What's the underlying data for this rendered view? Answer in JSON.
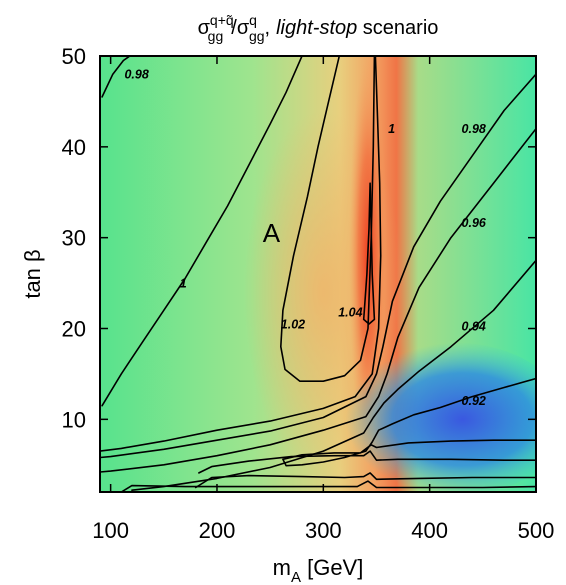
{
  "chart_data": {
    "type": "heatmap",
    "title": "σgg^{q+q̃}/σgg^q, light-stop scenario",
    "title_parts": {
      "sigma": "σ",
      "num_sub": "gg",
      "num_sup": "q+q̃",
      "slash": "/",
      "den_sub": "gg",
      "den_sup": "q",
      "comma": ",",
      "italic": "light-stop",
      "rest": " scenario"
    },
    "xlabel": "m",
    "xlabel_sub": "A",
    "xlabel_unit": " [GeV]",
    "ylabel": "tan β",
    "xlim": [
      90,
      500
    ],
    "ylim": [
      2,
      50
    ],
    "xticks": [
      100,
      200,
      300,
      400,
      500
    ],
    "yticks": [
      10,
      20,
      30,
      40,
      50
    ],
    "grid": false,
    "colormap": "rainbow (blue low → green → yellow → red high)",
    "region_label": {
      "text": "A",
      "x": 243,
      "y": 29.5
    },
    "contours": [
      {
        "level": "0.98",
        "label": {
          "text": "0.98",
          "x": 113,
          "y": 47.5
        },
        "points": [
          [
            92,
            45.5
          ],
          [
            102,
            48
          ],
          [
            112,
            49.5
          ],
          [
            118,
            50
          ]
        ]
      },
      {
        "level": "1",
        "label": {
          "text": "1",
          "x": 165,
          "y": 24.5
        },
        "points": [
          [
            92,
            11.5
          ],
          [
            110,
            15
          ],
          [
            130,
            18.5
          ],
          [
            150,
            22
          ],
          [
            170,
            25.5
          ],
          [
            190,
            29.5
          ],
          [
            210,
            33.5
          ],
          [
            230,
            38
          ],
          [
            250,
            42.5
          ],
          [
            265,
            46
          ],
          [
            280,
            50
          ]
        ]
      },
      {
        "level": "1.02",
        "label": {
          "text": "1.02",
          "x": 260,
          "y": 20
        },
        "points": [
          [
            315,
            50
          ],
          [
            305,
            45
          ],
          [
            295,
            40
          ],
          [
            285,
            34.5
          ],
          [
            272,
            28
          ],
          [
            262,
            22
          ],
          [
            260,
            18
          ],
          [
            264,
            15.5
          ],
          [
            278,
            14.2
          ],
          [
            300,
            14.2
          ],
          [
            320,
            14.8
          ],
          [
            335,
            16.5
          ],
          [
            342,
            20
          ],
          [
            345,
            30
          ],
          [
            347,
            40
          ],
          [
            348,
            50
          ]
        ]
      },
      {
        "level": "1.04",
        "label": {
          "text": "1.04",
          "x": 314,
          "y": 21.3
        },
        "points": [
          [
            338,
            21
          ],
          [
            341,
            26
          ],
          [
            343,
            31
          ],
          [
            344,
            36
          ],
          [
            345,
            31
          ],
          [
            346,
            26
          ],
          [
            348,
            21
          ],
          [
            343,
            20.5
          ],
          [
            338,
            21
          ]
        ]
      },
      {
        "level": "1",
        "label": {
          "text": "1",
          "x": 361,
          "y": 41.5
        },
        "points": [
          [
            349,
            50
          ],
          [
            351,
            43
          ],
          [
            353,
            36
          ],
          [
            354,
            28
          ],
          [
            352,
            20
          ],
          [
            346,
            15
          ],
          [
            330,
            12.5
          ],
          [
            300,
            11.2
          ],
          [
            250,
            9.8
          ],
          [
            200,
            8.8
          ],
          [
            150,
            7.6
          ],
          [
            110,
            6.8
          ],
          [
            90,
            6.5
          ]
        ]
      },
      {
        "level": "0.98",
        "label": {
          "text": "0.98",
          "x": 430,
          "y": 41.5
        },
        "points": [
          [
            500,
            48
          ],
          [
            470,
            44
          ],
          [
            440,
            39
          ],
          [
            410,
            34
          ],
          [
            385,
            29
          ],
          [
            365,
            23
          ],
          [
            356,
            18
          ],
          [
            350,
            15
          ],
          [
            340,
            12.5
          ],
          [
            300,
            10.2
          ],
          [
            250,
            8.7
          ],
          [
            200,
            7.7
          ],
          [
            150,
            6.7
          ],
          [
            100,
            5.9
          ],
          [
            90,
            5.8
          ]
        ]
      },
      {
        "level": "0.96",
        "label": {
          "text": "0.96",
          "x": 430,
          "y": 31.2
        },
        "points": [
          [
            500,
            42
          ],
          [
            460,
            36
          ],
          [
            420,
            30
          ],
          [
            390,
            24.5
          ],
          [
            370,
            19
          ],
          [
            360,
            15
          ],
          [
            352,
            12.5
          ],
          [
            340,
            10.3
          ],
          [
            300,
            8.8
          ],
          [
            250,
            7.2
          ],
          [
            200,
            6
          ],
          [
            150,
            5
          ],
          [
            100,
            4.3
          ],
          [
            90,
            4.2
          ]
        ]
      },
      {
        "level": "0.94",
        "label": {
          "text": "0.94",
          "x": 430,
          "y": 19.8
        },
        "points": [
          [
            500,
            27.5
          ],
          [
            460,
            22
          ],
          [
            420,
            18
          ],
          [
            390,
            15.3
          ],
          [
            370,
            13.3
          ],
          [
            357,
            11.8
          ],
          [
            347,
            10.2
          ],
          [
            338,
            8.5
          ],
          [
            300,
            6.5
          ],
          [
            250,
            4.7
          ],
          [
            200,
            3.5
          ],
          [
            150,
            2.6
          ],
          [
            120,
            2.2
          ]
        ]
      },
      {
        "level": "0.92",
        "label": {
          "text": "0.92",
          "x": 430,
          "y": 11.6
        },
        "points": [
          [
            500,
            14.5
          ],
          [
            470,
            13.5
          ],
          [
            440,
            12.5
          ],
          [
            410,
            11.3
          ],
          [
            385,
            10.5
          ],
          [
            365,
            9.5
          ],
          [
            352,
            8.8
          ],
          [
            346,
            7.5
          ],
          [
            340,
            6.5
          ],
          [
            320,
            5.8
          ],
          [
            300,
            5.3
          ],
          [
            280,
            5.0
          ],
          [
            265,
            4.9
          ],
          [
            262,
            5.6
          ],
          [
            280,
            6.1
          ],
          [
            310,
            6.3
          ],
          [
            335,
            6.3
          ],
          [
            345,
            7.2
          ],
          [
            350,
            6.9
          ],
          [
            380,
            7.4
          ],
          [
            420,
            7.6
          ],
          [
            460,
            7.7
          ],
          [
            500,
            7.7
          ]
        ]
      },
      {
        "level": "0.91",
        "label": null,
        "points": [
          [
            183,
            4.1
          ],
          [
            195,
            4.8
          ],
          [
            230,
            5.4
          ],
          [
            270,
            5.9
          ],
          [
            310,
            6.0
          ],
          [
            338,
            6.0
          ],
          [
            344,
            6.5
          ],
          [
            350,
            5.5
          ],
          [
            370,
            5.6
          ],
          [
            420,
            5.6
          ],
          [
            470,
            5.5
          ],
          [
            500,
            5.5
          ]
        ]
      },
      {
        "level": "0.90",
        "label": null,
        "points": [
          [
            180,
            2.5
          ],
          [
            195,
            3.6
          ],
          [
            230,
            3.8
          ],
          [
            280,
            3.7
          ],
          [
            320,
            3.6
          ],
          [
            338,
            3.7
          ],
          [
            344,
            4.1
          ],
          [
            350,
            3.4
          ],
          [
            390,
            3.5
          ],
          [
            440,
            3.6
          ],
          [
            500,
            3.6
          ]
        ]
      },
      {
        "level": "0.89",
        "label": null,
        "points": [
          [
            110,
            2
          ],
          [
            120,
            2.7
          ],
          [
            170,
            2.6
          ],
          [
            230,
            2.6
          ],
          [
            290,
            2.6
          ],
          [
            332,
            2.6
          ],
          [
            342,
            3.2
          ],
          [
            350,
            2.5
          ],
          [
            400,
            2.5
          ],
          [
            450,
            2.5
          ],
          [
            500,
            2.6
          ]
        ]
      }
    ]
  }
}
